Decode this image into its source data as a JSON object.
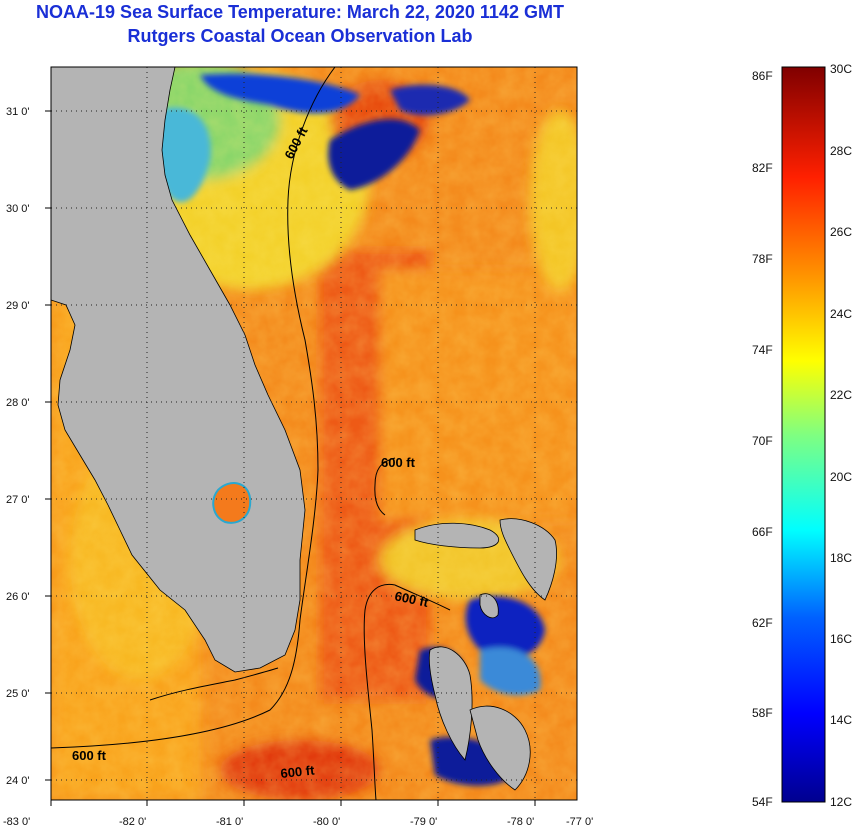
{
  "header": {
    "title": "NOAA-19 Sea Surface Temperature:  March 22, 2020 1142 GMT",
    "subtitle": "Rutgers Coastal Ocean Observation Lab"
  },
  "map": {
    "lon_ticks": [
      "-83 0'",
      "-82 0'",
      "-81 0'",
      "-80 0'",
      "-79 0'",
      "-78 0'",
      "-77 0'"
    ],
    "lat_ticks": [
      "31 0'",
      "30 0'",
      "29 0'",
      "28 0'",
      "27 0'",
      "26 0'",
      "25 0'",
      "24 0'"
    ],
    "contour_labels": [
      "600 ft",
      "600 ft",
      "600 ft",
      "600 ft",
      "600 ft"
    ],
    "colors": {
      "land": "#b4b4b4",
      "warm": "#f07818",
      "cold": "#0a1a9a",
      "coastline": "#000000"
    }
  },
  "colorbar": {
    "fahrenheit_labels": [
      "86F",
      "82F",
      "78F",
      "74F",
      "70F",
      "66F",
      "62F",
      "58F",
      "54F"
    ],
    "celsius_labels": [
      "30C",
      "28C",
      "26C",
      "24C",
      "22C",
      "20C",
      "18C",
      "16C",
      "14C",
      "12C"
    ]
  }
}
